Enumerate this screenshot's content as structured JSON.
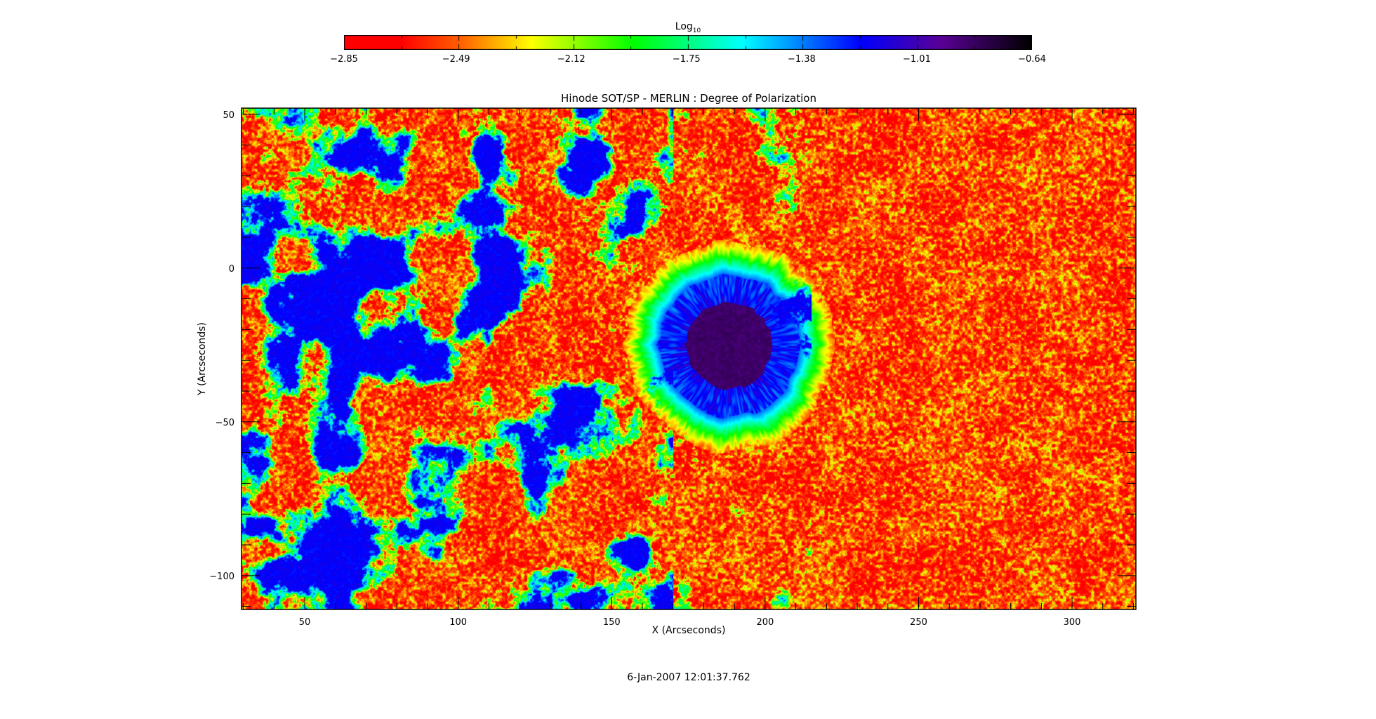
{
  "chart_data": {
    "type": "heatmap",
    "title": "Hinode SOT/SP - MERLIN : Degree of Polarization",
    "xlabel": "X (Arcseconds)",
    "ylabel": "Y (Arcseconds)",
    "xlim": [
      29.4,
      320.8
    ],
    "ylim": [
      -111,
      52
    ],
    "x_ticks": [
      50,
      100,
      150,
      200,
      250,
      300
    ],
    "x_tick_labels": [
      "50",
      "100",
      "150",
      "200",
      "250",
      "300"
    ],
    "y_ticks": [
      -100,
      -50,
      0,
      50
    ],
    "y_tick_labels": [
      "−100",
      "−50",
      "0",
      "50"
    ],
    "minor_tick_step": 10,
    "grid": false,
    "colorbar": {
      "title": "Log",
      "title_subscript": "10",
      "placement": "top",
      "range": [
        -2.85,
        -0.64
      ],
      "tick_values": [
        -2.85,
        -2.49,
        -2.12,
        -1.75,
        -1.38,
        -1.01,
        -0.64
      ],
      "tick_labels": [
        "−2.85",
        "−2.49",
        "−2.12",
        "−1.75",
        "−1.38",
        "−1.01",
        "−0.64"
      ],
      "colormap_stops": [
        {
          "value": -2.85,
          "color": "#ff0000"
        },
        {
          "value": -2.67,
          "color": "#ff0000"
        },
        {
          "value": -2.47,
          "color": "#ff6400"
        },
        {
          "value": -2.25,
          "color": "#ffff00"
        },
        {
          "value": -1.92,
          "color": "#00ff00"
        },
        {
          "value": -1.57,
          "color": "#00ffff"
        },
        {
          "value": -1.19,
          "color": "#0000ff"
        },
        {
          "value": -0.93,
          "color": "#5a0096"
        },
        {
          "value": -0.64,
          "color": "#000000"
        }
      ]
    },
    "timestamp": "6-Jan-2007 12:01:37.762"
  }
}
